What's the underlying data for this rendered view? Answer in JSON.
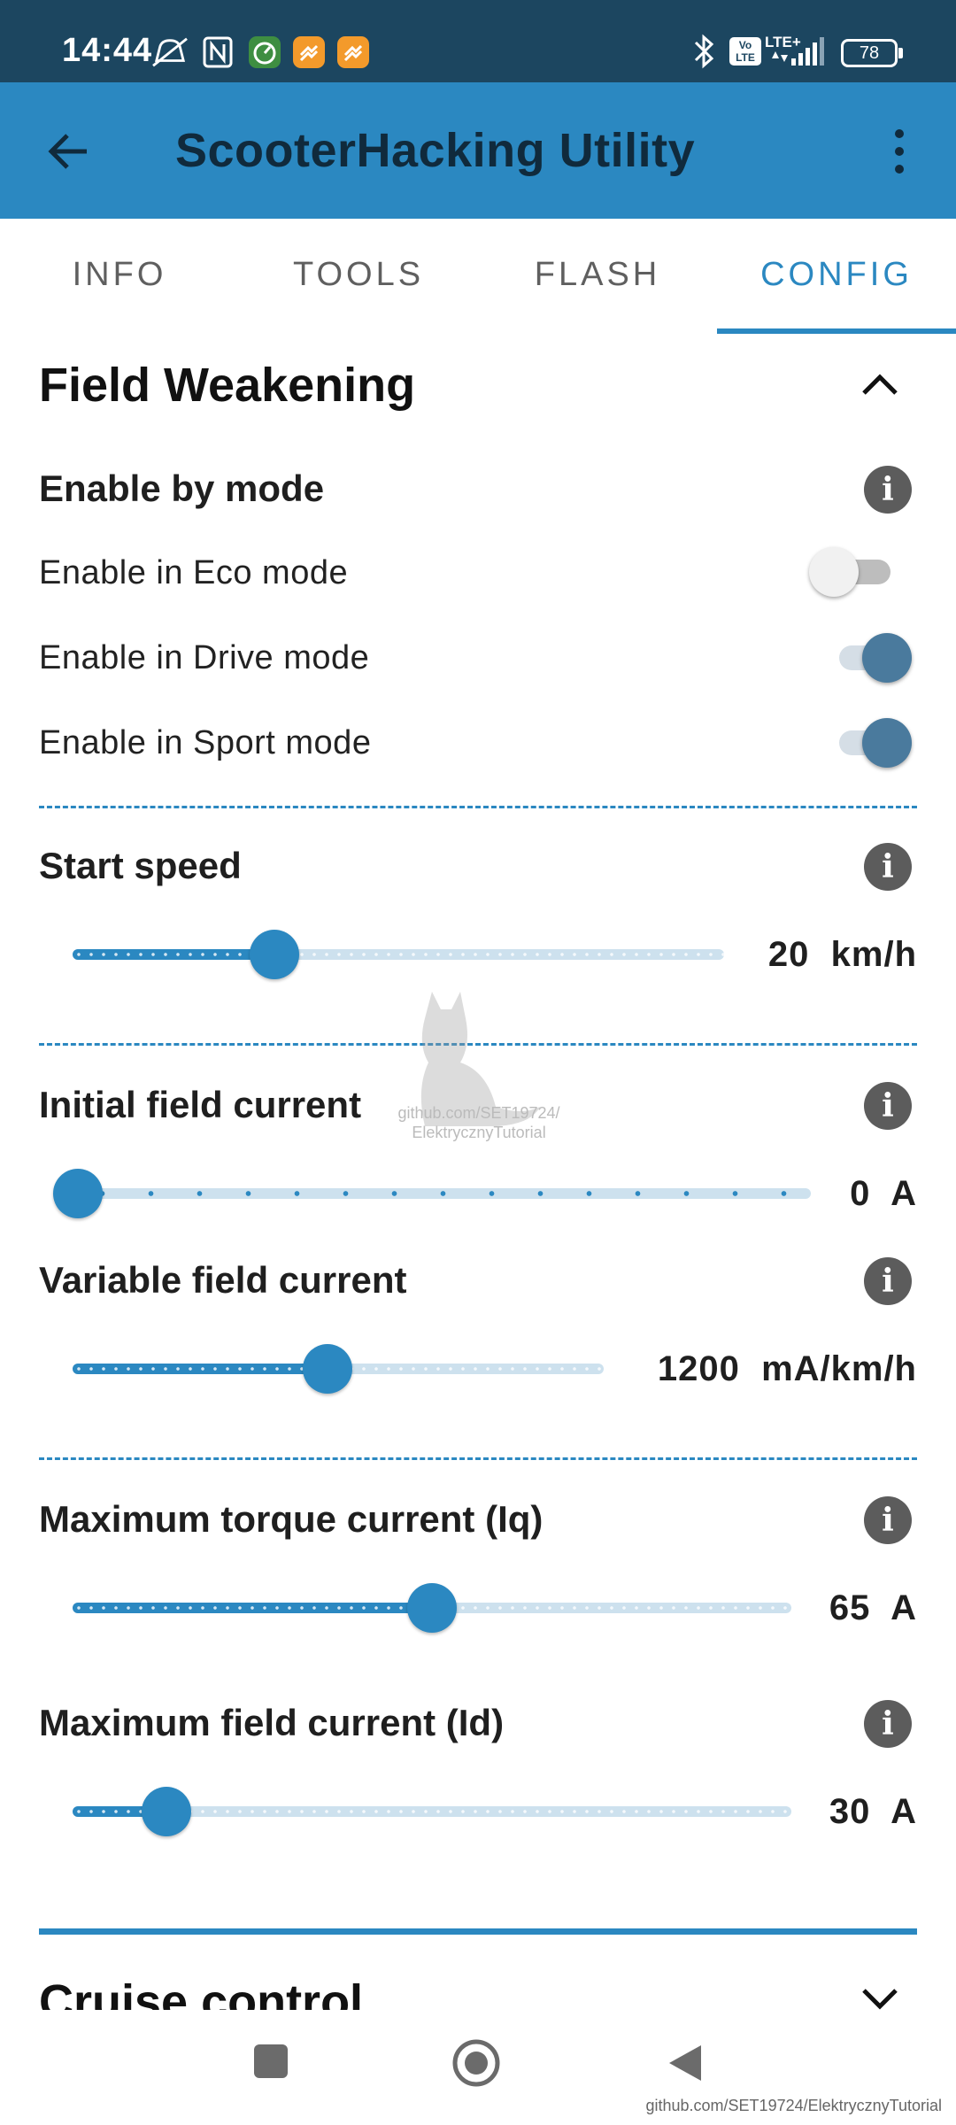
{
  "status_bar": {
    "time": "14:44",
    "network": "LTE+",
    "volte": "Vo LTE",
    "battery": "78"
  },
  "app_bar": {
    "title": "ScooterHacking Utility"
  },
  "tabs": [
    {
      "label": "INFO",
      "active": false
    },
    {
      "label": "TOOLS",
      "active": false
    },
    {
      "label": "FLASH",
      "active": false
    },
    {
      "label": "CONFIG",
      "active": true
    }
  ],
  "field_weakening": {
    "title": "Field Weakening",
    "enable_by_mode": {
      "title": "Enable by mode",
      "items": [
        {
          "label": "Enable in Eco mode",
          "on": false
        },
        {
          "label": "Enable in Drive mode",
          "on": true
        },
        {
          "label": "Enable in Sport mode",
          "on": true
        }
      ]
    },
    "start_speed": {
      "title": "Start speed",
      "value": "20",
      "unit": "km/h",
      "fraction": 0.31
    },
    "initial_field_current": {
      "title": "Initial field current",
      "value": "0",
      "unit": "A",
      "fraction": 0.0
    },
    "variable_field_current": {
      "title": "Variable field current",
      "value": "1200",
      "unit": "mA/km/h",
      "fraction": 0.48
    },
    "max_torque_current": {
      "title": "Maximum torque current (Iq)",
      "value": "65",
      "unit": "A",
      "fraction": 0.5
    },
    "max_field_current": {
      "title": "Maximum field current (Id)",
      "value": "30",
      "unit": "A",
      "fraction": 0.13
    }
  },
  "cruise_control": {
    "title": "Cruise control"
  },
  "watermark": {
    "text": "github.com/SET19724/ ElektrycznyTutorial"
  },
  "footer": {
    "credit": "github.com/SET19724/ElektrycznyTutorial"
  },
  "colors": {
    "accent": "#2b88c1",
    "status_bar": "#1c4660",
    "switch_on": "#4a7a9d"
  }
}
